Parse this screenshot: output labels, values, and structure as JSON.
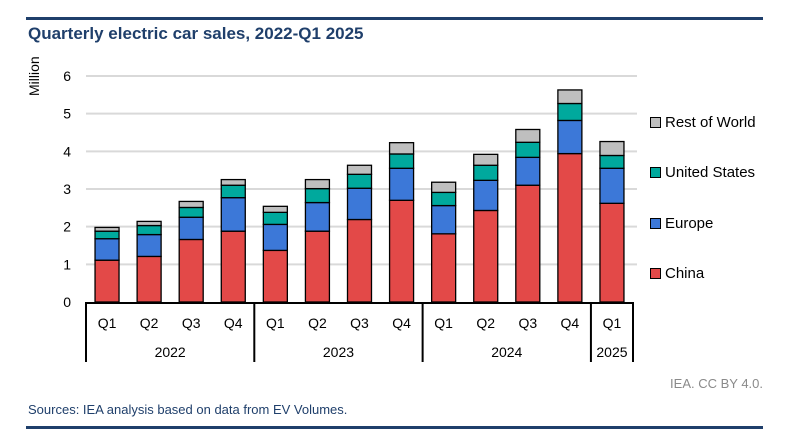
{
  "header": {
    "title": "Quarterly electric car sales, 2022-Q1 2025"
  },
  "footer": {
    "credit": "IEA. CC BY 4.0.",
    "source": "Sources: IEA analysis based on data from EV Volumes."
  },
  "chart_data": {
    "type": "bar",
    "stacked": true,
    "title": "Quarterly electric car sales, 2022-Q1 2025",
    "xlabel": "",
    "ylabel": "Million",
    "ylim": [
      0,
      6
    ],
    "yticks": [
      0,
      1,
      2,
      3,
      4,
      5,
      6
    ],
    "grid": true,
    "legend_position": "right",
    "categories": [
      "Q1",
      "Q2",
      "Q3",
      "Q4",
      "Q1",
      "Q2",
      "Q3",
      "Q4",
      "Q1",
      "Q2",
      "Q3",
      "Q4",
      "Q1"
    ],
    "groups": [
      {
        "label": "2022",
        "count": 4
      },
      {
        "label": "2023",
        "count": 4
      },
      {
        "label": "2024",
        "count": 4
      },
      {
        "label": "2025",
        "count": 1
      }
    ],
    "series": [
      {
        "name": "China",
        "color": "#e34948",
        "values": [
          1.11,
          1.21,
          1.66,
          1.88,
          1.37,
          1.88,
          2.19,
          2.7,
          1.81,
          2.43,
          3.1,
          3.94,
          2.62
        ]
      },
      {
        "name": "Europe",
        "color": "#3c78d8",
        "values": [
          0.57,
          0.58,
          0.59,
          0.89,
          0.69,
          0.76,
          0.83,
          0.85,
          0.75,
          0.8,
          0.74,
          0.88,
          0.93
        ]
      },
      {
        "name": "United States",
        "color": "#00a99d",
        "values": [
          0.2,
          0.24,
          0.26,
          0.33,
          0.32,
          0.37,
          0.37,
          0.38,
          0.35,
          0.4,
          0.4,
          0.45,
          0.34
        ]
      },
      {
        "name": "Rest of World",
        "color": "#bfbfbf",
        "values": [
          0.1,
          0.11,
          0.16,
          0.15,
          0.16,
          0.24,
          0.24,
          0.3,
          0.27,
          0.29,
          0.34,
          0.36,
          0.37
        ]
      }
    ],
    "legend_order": [
      "Rest of World",
      "United States",
      "Europe",
      "China"
    ]
  }
}
